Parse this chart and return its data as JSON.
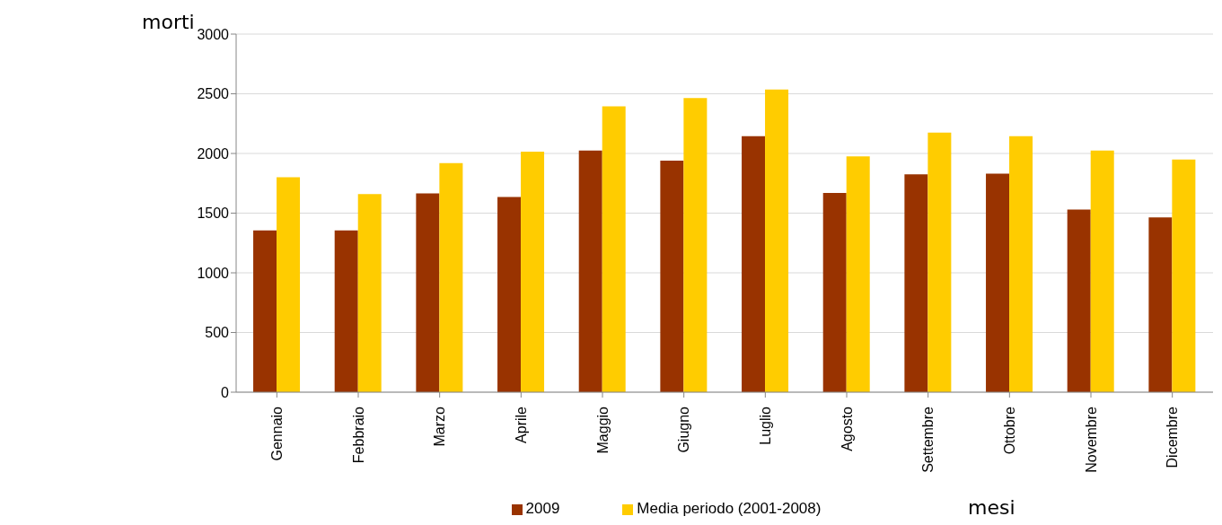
{
  "chart_data": {
    "type": "bar",
    "xlabel": "mesi",
    "ylabel": "morti",
    "categories": [
      "Gennaio",
      "Febbraio",
      "Marzo",
      "Aprile",
      "Maggio",
      "Giugno",
      "Luglio",
      "Agosto",
      "Settembre",
      "Ottobre",
      "Novembre",
      "Dicembre"
    ],
    "series": [
      {
        "name": "2009",
        "color": "#993300",
        "values": [
          1355,
          1355,
          1665,
          1635,
          2025,
          1940,
          2145,
          1670,
          1825,
          1830,
          1530,
          1465
        ]
      },
      {
        "name": "Media periodo (2001-2008)",
        "color": "#ffcc00",
        "values": [
          1800,
          1660,
          1920,
          2015,
          2395,
          2465,
          2535,
          1975,
          2175,
          2145,
          2025,
          1950
        ]
      }
    ],
    "ylim": [
      0,
      3000
    ],
    "yticks": [
      0,
      500,
      1000,
      1500,
      2000,
      2500,
      3000
    ],
    "grid": "y",
    "legend": "bottom"
  }
}
